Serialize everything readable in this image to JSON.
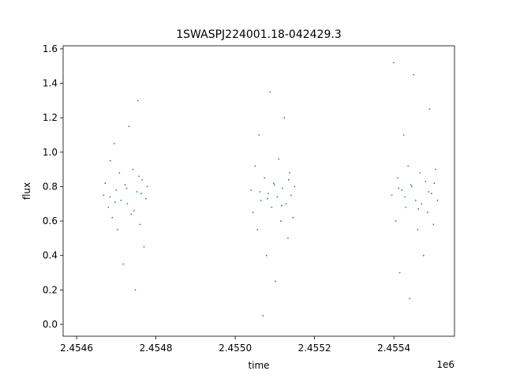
{
  "chart_data": {
    "type": "scatter",
    "title": "1SWASPJ224001.18-042429.3",
    "x_label": "time",
    "y_label": "flux",
    "x_offset_label": "1e6",
    "color": "#1f77b4",
    "xlim": [
      2454566,
      2455553
    ],
    "ylim": [
      -0.069,
      1.618
    ],
    "xticks": [
      {
        "value": 2454600,
        "label": "2.4546"
      },
      {
        "value": 2454800,
        "label": "2.4548"
      },
      {
        "value": 2455000,
        "label": "2.4550"
      },
      {
        "value": 2455200,
        "label": "2.4552"
      },
      {
        "value": 2455400,
        "label": "2.4554"
      }
    ],
    "yticks": [
      {
        "value": 0,
        "label": "0.0"
      },
      0.2,
      0.4,
      0.6,
      0.8,
      {
        "value": 1,
        "label": "1.0"
      },
      1.2,
      1.4,
      1.6
    ],
    "x": [
      2454668,
      2454672,
      2454680,
      2454685,
      2454690,
      2454695,
      2454700,
      2454703,
      2454708,
      2454712,
      2454718,
      2454722,
      2454728,
      2454732,
      2454738,
      2454742,
      2454748,
      2454752,
      2454755,
      2454760,
      2454765,
      2454770,
      2454775,
      2454778,
      2454684,
      2454697,
      2454726,
      2454745,
      2454757,
      2454763,
      2455040,
      2455045,
      2455050,
      2455056,
      2455060,
      2455065,
      2455070,
      2455074,
      2455079,
      2455083,
      2455088,
      2455092,
      2455097,
      2455101,
      2455106,
      2455110,
      2455115,
      2455119,
      2455124,
      2455128,
      2455133,
      2455137,
      2455141,
      2455146,
      2455150,
      2455062,
      2455081,
      2455099,
      2455117,
      2455135,
      2455395,
      2455400,
      2455405,
      2455410,
      2455415,
      2455420,
      2455425,
      2455430,
      2455436,
      2455440,
      2455445,
      2455450,
      2455455,
      2455460,
      2455466,
      2455470,
      2455475,
      2455480,
      2455485,
      2455490,
      2455495,
      2455500,
      2455505,
      2455510,
      2455412,
      2455428,
      2455443,
      2455462,
      2455488,
      2455502
    ],
    "values": [
      0.75,
      0.82,
      0.68,
      0.95,
      0.62,
      1.05,
      0.78,
      0.55,
      0.88,
      0.72,
      0.35,
      0.81,
      0.7,
      1.15,
      0.64,
      0.9,
      0.2,
      0.77,
      1.3,
      0.58,
      0.84,
      0.45,
      0.73,
      0.8,
      0.74,
      0.71,
      0.79,
      0.66,
      0.86,
      0.76,
      0.78,
      0.65,
      0.92,
      0.55,
      1.1,
      0.72,
      0.05,
      0.85,
      0.4,
      0.76,
      1.35,
      0.68,
      0.82,
      0.25,
      0.74,
      0.96,
      0.6,
      0.79,
      1.2,
      0.7,
      0.5,
      0.88,
      0.75,
      0.62,
      0.8,
      0.77,
      0.73,
      0.81,
      0.69,
      0.84,
      0.75,
      1.52,
      0.6,
      0.85,
      0.3,
      0.78,
      1.1,
      0.68,
      0.92,
      0.15,
      0.8,
      1.45,
      0.72,
      0.55,
      0.88,
      0.7,
      0.4,
      0.83,
      0.65,
      1.25,
      0.76,
      0.58,
      0.9,
      0.72,
      0.79,
      0.74,
      0.81,
      0.67,
      0.77,
      0.82
    ]
  }
}
